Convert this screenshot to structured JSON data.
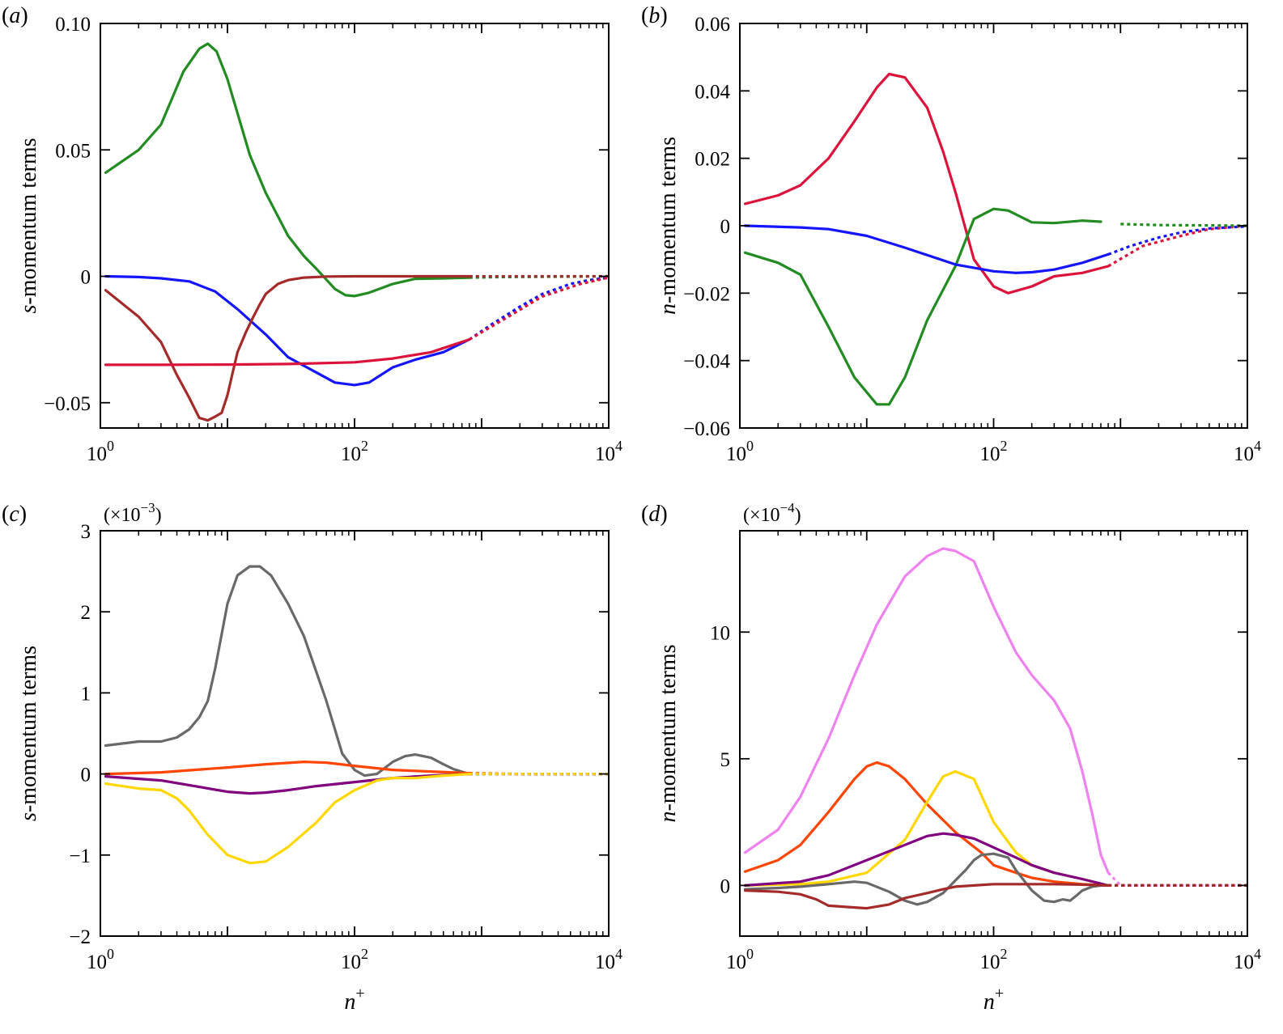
{
  "chart_data": [
    {
      "type": "line",
      "panel_label": "(a)",
      "multiplier": "",
      "xlabel": "",
      "ylabel": "s-momentum terms",
      "ylabel_italic": "s",
      "ylabel_rest": "-momentum terms",
      "xscale": "log",
      "xlim": [
        1,
        10000
      ],
      "ylim": [
        -0.06,
        0.1
      ],
      "yticks": [
        -0.05,
        0,
        0.05,
        0.1
      ],
      "ytick_labels": [
        "−0.05",
        "0",
        "0.05",
        "0.10"
      ],
      "xticks": [
        1,
        100,
        10000
      ],
      "xtick_labels": [
        "10^0",
        "10^2",
        "10^4"
      ],
      "series": [
        {
          "name": "green",
          "color": "#228B22",
          "dashed_from": 800,
          "x": [
            1.1,
            2,
            3,
            4.5,
            6,
            7,
            8.2,
            10,
            15,
            20,
            30,
            40,
            50,
            70,
            85,
            100,
            130,
            200,
            300,
            500,
            800,
            1500,
            3000,
            6000,
            10000
          ],
          "y": [
            0.041,
            0.05,
            0.06,
            0.081,
            0.09,
            0.092,
            0.089,
            0.078,
            0.048,
            0.033,
            0.016,
            0.008,
            0.003,
            -0.005,
            -0.0075,
            -0.0078,
            -0.0065,
            -0.003,
            -0.001,
            -0.0008,
            -0.0005,
            -0.0003,
            -0.0002,
            -0.0001,
            0
          ]
        },
        {
          "name": "blue",
          "color": "#1515FF",
          "dashed_from": 800,
          "x": [
            1.1,
            2,
            3,
            5,
            8,
            12,
            20,
            30,
            50,
            70,
            100,
            130,
            200,
            300,
            500,
            800,
            1200,
            2000,
            3000,
            5000,
            7000,
            10000
          ],
          "y": [
            0,
            -0.0003,
            -0.0008,
            -0.002,
            -0.006,
            -0.013,
            -0.023,
            -0.032,
            -0.038,
            -0.042,
            -0.043,
            -0.042,
            -0.036,
            -0.033,
            -0.03,
            -0.025,
            -0.019,
            -0.012,
            -0.007,
            -0.003,
            -0.0015,
            -0.0005
          ]
        },
        {
          "name": "brown",
          "color": "#A52A2A",
          "dashed_from": 800,
          "x": [
            1.1,
            2,
            3,
            4,
            5,
            6,
            7,
            8,
            9,
            10,
            11,
            12,
            14,
            16,
            18,
            20,
            25,
            30,
            40,
            60,
            100,
            200,
            500,
            800,
            2000,
            5000,
            10000
          ],
          "y": [
            -0.0055,
            -0.016,
            -0.026,
            -0.039,
            -0.048,
            -0.056,
            -0.057,
            -0.0555,
            -0.054,
            -0.047,
            -0.038,
            -0.03,
            -0.022,
            -0.016,
            -0.011,
            -0.007,
            -0.003,
            -0.0015,
            -0.0005,
            -0.0001,
            0,
            0,
            0,
            0,
            0,
            0,
            0
          ]
        },
        {
          "name": "crimson",
          "color": "#DC143C",
          "dashed_from": 800,
          "x": [
            1.1,
            3,
            10,
            30,
            100,
            200,
            400,
            800,
            1500,
            3000,
            6000,
            10000
          ],
          "y": [
            -0.035,
            -0.035,
            -0.0349,
            -0.0347,
            -0.034,
            -0.0325,
            -0.03,
            -0.025,
            -0.017,
            -0.008,
            -0.003,
            -0.0005
          ]
        }
      ]
    },
    {
      "type": "line",
      "panel_label": "(b)",
      "multiplier": "",
      "xlabel": "",
      "ylabel": "n-momentum terms",
      "ylabel_italic": "n",
      "ylabel_rest": "-momentum terms",
      "xscale": "log",
      "xlim": [
        1,
        10000
      ],
      "ylim": [
        -0.06,
        0.06
      ],
      "yticks": [
        -0.06,
        -0.04,
        -0.02,
        0,
        0.02,
        0.04,
        0.06
      ],
      "ytick_labels": [
        "−0.06",
        "−0.04",
        "−0.02",
        "0",
        "0.02",
        "0.04",
        "0.06"
      ],
      "xticks": [
        1,
        100,
        10000
      ],
      "xtick_labels": [
        "10^0",
        "10^2",
        "10^4"
      ],
      "series": [
        {
          "name": "crimson",
          "color": "#DC143C",
          "dashed_from": 800,
          "x": [
            1.1,
            2,
            3,
            5,
            8,
            12,
            15,
            20,
            30,
            40,
            50,
            70,
            100,
            130,
            200,
            300,
            500,
            800,
            1500,
            3000,
            5000,
            10000
          ],
          "y": [
            0.0065,
            0.009,
            0.012,
            0.02,
            0.031,
            0.041,
            0.045,
            0.044,
            0.035,
            0.022,
            0.01,
            -0.01,
            -0.018,
            -0.02,
            -0.018,
            -0.015,
            -0.014,
            -0.012,
            -0.006,
            -0.003,
            -0.001,
            0
          ]
        },
        {
          "name": "green",
          "color": "#228B22",
          "dashed_from": 800,
          "x": [
            1.1,
            2,
            3,
            5,
            8,
            12,
            15,
            20,
            30,
            50,
            70,
            100,
            130,
            200,
            300,
            500,
            700,
            1000,
            2000,
            5000,
            10000
          ],
          "y": [
            -0.008,
            -0.011,
            -0.0145,
            -0.03,
            -0.045,
            -0.053,
            -0.053,
            -0.045,
            -0.028,
            -0.012,
            0.002,
            0.005,
            0.0045,
            0.001,
            0.0008,
            0.0015,
            0.0012,
            0.0005,
            0.0002,
            0.0001,
            0
          ]
        },
        {
          "name": "blue",
          "color": "#1515FF",
          "dashed_from": 800,
          "x": [
            1.1,
            3,
            5,
            10,
            20,
            50,
            100,
            150,
            200,
            300,
            500,
            800,
            1200,
            2000,
            3000,
            5000,
            10000
          ],
          "y": [
            0,
            -0.0005,
            -0.001,
            -0.003,
            -0.0065,
            -0.0115,
            -0.0135,
            -0.014,
            -0.0138,
            -0.013,
            -0.011,
            -0.0085,
            -0.006,
            -0.0035,
            -0.002,
            -0.0008,
            -0.0002
          ]
        }
      ]
    },
    {
      "type": "line",
      "panel_label": "(c)",
      "multiplier": "(×10−3)",
      "xlabel": "n+",
      "ylabel": "s-momentum terms",
      "ylabel_italic": "s",
      "ylabel_rest": "-momentum terms",
      "xscale": "log",
      "xlim": [
        1,
        10000
      ],
      "ylim": [
        -2,
        3
      ],
      "yticks": [
        -2,
        -1,
        0,
        1,
        2,
        3
      ],
      "ytick_labels": [
        "−2",
        "−1",
        "0",
        "1",
        "2",
        "3"
      ],
      "xticks": [
        1,
        100,
        10000
      ],
      "xtick_labels": [
        "10^0",
        "10^2",
        "10^4"
      ],
      "series": [
        {
          "name": "grey",
          "color": "#696969",
          "dashed_from": 800,
          "x": [
            1.1,
            2,
            3,
            4,
            5,
            6,
            7,
            8,
            10,
            12,
            15,
            18,
            22,
            30,
            40,
            60,
            80,
            100,
            120,
            150,
            200,
            250,
            300,
            400,
            500,
            600,
            800,
            2000,
            10000
          ],
          "y": [
            0.35,
            0.4,
            0.4,
            0.45,
            0.55,
            0.7,
            0.9,
            1.3,
            2.1,
            2.45,
            2.56,
            2.56,
            2.45,
            2.1,
            1.7,
            0.9,
            0.25,
            0.05,
            -0.02,
            0,
            0.15,
            0.22,
            0.24,
            0.2,
            0.12,
            0.06,
            0,
            0,
            0
          ]
        },
        {
          "name": "orange-red",
          "color": "#FF4500",
          "dashed_from": 800,
          "x": [
            1.1,
            3,
            10,
            20,
            40,
            60,
            100,
            200,
            400,
            800,
            2000,
            10000
          ],
          "y": [
            0,
            0.02,
            0.08,
            0.12,
            0.15,
            0.14,
            0.1,
            0.05,
            0.03,
            0.01,
            0,
            0
          ]
        },
        {
          "name": "purple",
          "color": "#800080",
          "dashed_from": 800,
          "x": [
            1.1,
            3,
            6,
            10,
            15,
            20,
            30,
            50,
            100,
            200,
            400,
            800,
            2000,
            10000
          ],
          "y": [
            -0.03,
            -0.08,
            -0.16,
            -0.22,
            -0.24,
            -0.23,
            -0.2,
            -0.15,
            -0.1,
            -0.05,
            -0.02,
            0,
            0,
            0
          ]
        },
        {
          "name": "gold",
          "color": "#FFD700",
          "dashed_from": 800,
          "x": [
            1.1,
            2,
            3,
            4,
            5,
            7,
            10,
            15,
            20,
            30,
            50,
            70,
            100,
            150,
            200,
            300,
            500,
            800,
            2000,
            10000
          ],
          "y": [
            -0.12,
            -0.18,
            -0.2,
            -0.3,
            -0.45,
            -0.75,
            -1.0,
            -1.1,
            -1.08,
            -0.9,
            -0.6,
            -0.35,
            -0.2,
            -0.08,
            -0.05,
            -0.05,
            -0.02,
            0,
            0,
            0
          ]
        }
      ]
    },
    {
      "type": "line",
      "panel_label": "(d)",
      "multiplier": "(×10−4)",
      "xlabel": "n+",
      "ylabel": "n-momentum terms",
      "ylabel_italic": "n",
      "ylabel_rest": "-momentum terms",
      "xscale": "log",
      "xlim": [
        1,
        10000
      ],
      "ylim": [
        -2,
        14
      ],
      "yticks": [
        0,
        5,
        10
      ],
      "ytick_labels": [
        "0",
        "5",
        "10"
      ],
      "xticks": [
        1,
        100,
        10000
      ],
      "xtick_labels": [
        "10^0",
        "10^2",
        "10^4"
      ],
      "series": [
        {
          "name": "violet",
          "color": "#EE82EE",
          "dashed_from": 800,
          "x": [
            1.1,
            2,
            3,
            5,
            8,
            12,
            20,
            30,
            40,
            50,
            70,
            100,
            150,
            200,
            300,
            400,
            500,
            600,
            700,
            800,
            1000,
            2000,
            10000
          ],
          "y": [
            1.3,
            2.2,
            3.5,
            5.8,
            8.3,
            10.3,
            12.2,
            13.0,
            13.3,
            13.2,
            12.8,
            11.0,
            9.2,
            8.3,
            7.3,
            6.2,
            4.5,
            2.8,
            1.2,
            0.5,
            0,
            0,
            0
          ]
        },
        {
          "name": "orange-red",
          "color": "#FF4500",
          "dashed_from": 800,
          "x": [
            1.1,
            2,
            3,
            5,
            8,
            10,
            12,
            15,
            20,
            30,
            50,
            80,
            100,
            150,
            200,
            300,
            500,
            800,
            2000,
            10000
          ],
          "y": [
            0.55,
            1.0,
            1.6,
            2.9,
            4.2,
            4.7,
            4.85,
            4.7,
            4.2,
            3.2,
            2.1,
            1.3,
            0.8,
            0.5,
            0.3,
            0.15,
            0.05,
            0,
            0,
            0
          ]
        },
        {
          "name": "gold",
          "color": "#FFD700",
          "dashed_from": 800,
          "x": [
            1.1,
            3,
            5,
            10,
            20,
            30,
            40,
            50,
            70,
            100,
            150,
            200,
            300,
            500,
            800,
            2000,
            10000
          ],
          "y": [
            0,
            0.05,
            0.15,
            0.5,
            1.8,
            3.3,
            4.3,
            4.5,
            4.2,
            2.5,
            1.3,
            0.8,
            0.5,
            0.25,
            0,
            0,
            0
          ]
        },
        {
          "name": "purple",
          "color": "#800080",
          "dashed_from": 800,
          "x": [
            1.1,
            3,
            5,
            10,
            20,
            30,
            40,
            50,
            70,
            100,
            150,
            200,
            300,
            500,
            800,
            2000,
            10000
          ],
          "y": [
            0,
            0.15,
            0.4,
            1.0,
            1.6,
            1.95,
            2.05,
            2.0,
            1.85,
            1.5,
            1.1,
            0.8,
            0.5,
            0.25,
            0,
            0,
            0
          ]
        },
        {
          "name": "grey",
          "color": "#696969",
          "dashed_from": 800,
          "x": [
            1.1,
            2,
            3,
            5,
            8,
            10,
            15,
            20,
            25,
            30,
            40,
            50,
            60,
            70,
            80,
            100,
            130,
            150,
            200,
            250,
            300,
            350,
            400,
            450,
            500,
            600,
            700,
            800,
            2000,
            10000
          ],
          "y": [
            -0.15,
            -0.1,
            -0.05,
            0.05,
            0.15,
            0.1,
            -0.25,
            -0.6,
            -0.75,
            -0.65,
            -0.3,
            0.2,
            0.6,
            1.0,
            1.2,
            1.25,
            1.1,
            0.6,
            -0.2,
            -0.6,
            -0.65,
            -0.55,
            -0.6,
            -0.4,
            -0.2,
            -0.05,
            0,
            0,
            0,
            0
          ]
        },
        {
          "name": "brown",
          "color": "#A52A2A",
          "dashed_from": 800,
          "x": [
            1.1,
            2,
            3,
            4,
            5,
            7,
            10,
            15,
            20,
            30,
            40,
            50,
            70,
            100,
            150,
            200,
            300,
            500,
            800,
            2000,
            10000
          ],
          "y": [
            -0.2,
            -0.25,
            -0.35,
            -0.55,
            -0.8,
            -0.85,
            -0.9,
            -0.75,
            -0.5,
            -0.3,
            -0.15,
            -0.05,
            0,
            0.05,
            0.05,
            0.05,
            0.05,
            0.03,
            0,
            0,
            0
          ]
        }
      ]
    }
  ]
}
